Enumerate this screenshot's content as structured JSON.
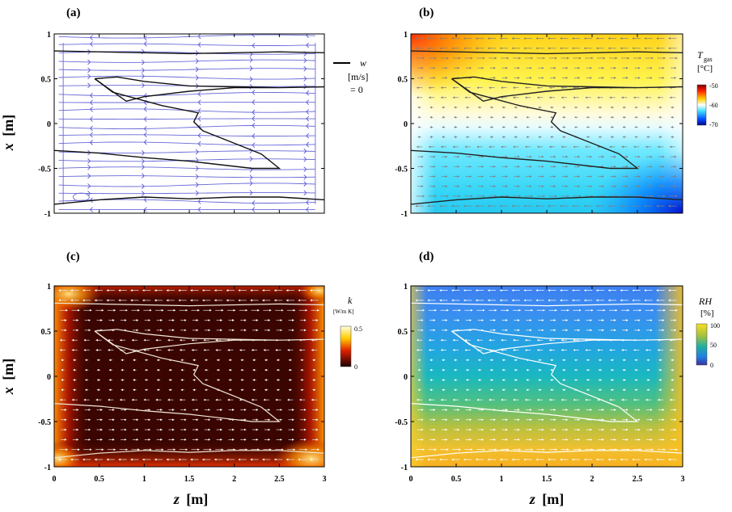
{
  "figure": {
    "panel_labels": [
      "(a)",
      "(b)",
      "(c)",
      "(d)"
    ],
    "x_axis_label_var": "z",
    "x_axis_label_unit": "[m]",
    "y_axis_label_var": "x",
    "y_axis_label_unit": "[m]",
    "x_ticks": [
      "0",
      "0.5",
      "1",
      "1.5",
      "2",
      "2.5",
      "3"
    ],
    "y_ticks": [
      "1",
      "0.5",
      "0",
      "-0.5",
      "-1"
    ],
    "legend_a": {
      "var": "w",
      "unit": "[m/s]",
      "value": "= 0"
    },
    "colorbar_b": {
      "var": "T",
      "sub": "gas",
      "unit": "[°C]",
      "ticks": [
        "-50",
        "-60",
        "-70"
      ]
    },
    "colorbar_c": {
      "var": "k",
      "unit": "[W/m K]",
      "ticks": [
        "0.5",
        "0"
      ]
    },
    "colorbar_d": {
      "var": "RH",
      "unit": "[%]",
      "ticks": [
        "100",
        "50",
        "0"
      ]
    }
  },
  "chart_data": [
    {
      "type": "contour",
      "panel": "(a)",
      "description": "streamlines with w = 0 contour",
      "xlabel": "z [m]",
      "ylabel": "x [m]",
      "xlim": [
        0,
        3
      ],
      "ylim": [
        -1,
        1
      ],
      "contour_w0": {
        "top": [
          [
            0,
            0.81
          ],
          [
            0.5,
            0.8
          ],
          [
            1,
            0.79
          ],
          [
            1.5,
            0.78
          ],
          [
            2,
            0.79
          ],
          [
            2.5,
            0.8
          ],
          [
            3,
            0.79
          ]
        ],
        "upper_loop": [
          [
            0.45,
            0.5
          ],
          [
            0.7,
            0.52
          ],
          [
            1,
            0.47
          ],
          [
            1.5,
            0.42
          ],
          [
            2,
            0.41
          ],
          [
            2.5,
            0.4
          ],
          [
            3,
            0.41
          ],
          [
            2.5,
            0.4
          ],
          [
            2,
            0.4
          ],
          [
            1.5,
            0.36
          ],
          [
            1,
            0.3
          ],
          [
            0.8,
            0.25
          ],
          [
            0.45,
            0.5
          ]
        ],
        "mid_tongue": [
          [
            0.45,
            0.5
          ],
          [
            0.65,
            0.35
          ],
          [
            1.2,
            0.2
          ],
          [
            1.6,
            0.12
          ],
          [
            1.55,
            0.02
          ],
          [
            1.65,
            -0.08
          ],
          [
            2.0,
            -0.22
          ],
          [
            2.3,
            -0.34
          ],
          [
            2.5,
            -0.5
          ],
          [
            2.2,
            -0.5
          ],
          [
            1.5,
            -0.42
          ],
          [
            1,
            -0.38
          ],
          [
            0.5,
            -0.33
          ],
          [
            0,
            -0.3
          ]
        ],
        "bottom": [
          [
            0,
            -0.9
          ],
          [
            0.5,
            -0.85
          ],
          [
            1,
            -0.82
          ],
          [
            1.5,
            -0.84
          ],
          [
            2,
            -0.82
          ],
          [
            2.5,
            -0.82
          ],
          [
            3,
            -0.85
          ]
        ]
      }
    },
    {
      "type": "heatmap",
      "panel": "(b)",
      "variable": "T_gas",
      "unit": "°C",
      "colorbar_range": [
        -70,
        -50
      ],
      "pattern": "warm (yellow/white) upper half, cold (cyan) lower half, red top-left corner, blue bottom-right corner"
    },
    {
      "type": "heatmap",
      "panel": "(c)",
      "variable": "k",
      "unit": "W/m K",
      "colorbar_range": [
        0,
        0.5
      ],
      "pattern": "near-zero (dark) interior, higher values (red/orange/yellow) near walls and corners"
    },
    {
      "type": "heatmap",
      "panel": "(d)",
      "variable": "RH",
      "unit": "%",
      "colorbar_range": [
        0,
        100
      ],
      "pattern": "low RH (blue) at top, increasing to high RH (yellow/orange) at bottom and right wall"
    }
  ]
}
